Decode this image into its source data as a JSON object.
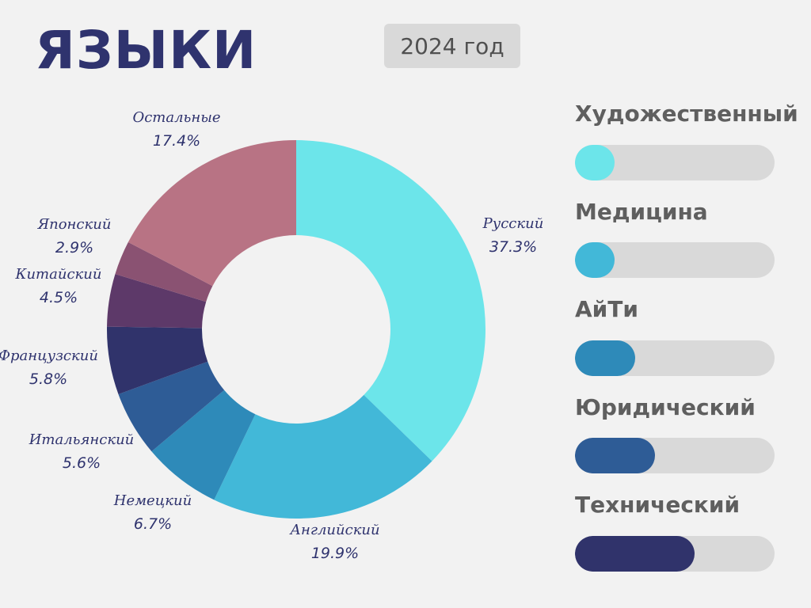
{
  "header": {
    "title": "ЯЗЫКИ",
    "year": "2024 год"
  },
  "chart_data": {
    "type": "pie",
    "categories": [
      "Русский",
      "Английский",
      "Немецкий",
      "Итальянский",
      "Французский",
      "Китайский",
      "Японский",
      "Остальные"
    ],
    "values": [
      37.3,
      19.9,
      6.7,
      5.6,
      5.8,
      4.5,
      2.9,
      17.4
    ],
    "value_labels": [
      "37.3%",
      "19.9%",
      "6.7%",
      "5.6%",
      "5.8%",
      "4.5%",
      "2.9%",
      "17.4%"
    ],
    "colors": [
      "#6ce5ea",
      "#42b8d8",
      "#2e8ab9",
      "#2e5c96",
      "#30336b",
      "#5d3969",
      "#8a5272",
      "#b87384"
    ],
    "style": "donut",
    "start": "top",
    "direction": "clockwise",
    "title": "ЯЗЫКИ"
  },
  "categories_panel": {
    "items": [
      {
        "label": "Художественный",
        "fill": 0.2,
        "color": "#6ce5ea"
      },
      {
        "label": "Медицина",
        "fill": 0.2,
        "color": "#42b8d8"
      },
      {
        "label": "АйТи",
        "fill": 0.3,
        "color": "#2e8ab9"
      },
      {
        "label": "Юридический",
        "fill": 0.4,
        "color": "#2e5c96"
      },
      {
        "label": "Технический",
        "fill": 0.6,
        "color": "#30336b"
      }
    ]
  }
}
